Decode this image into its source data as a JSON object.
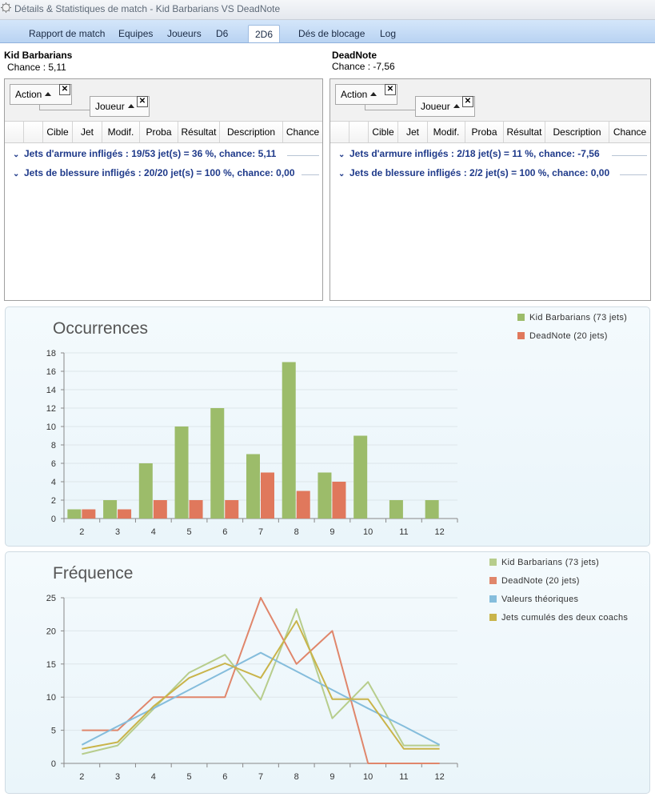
{
  "window": {
    "title": "Détails & Statistiques de match - Kid Barbarians VS DeadNote",
    "icon": "app-icon"
  },
  "tabs": [
    {
      "label": "Rapport de match",
      "active": false
    },
    {
      "label": "Equipes",
      "active": false
    },
    {
      "label": "Joueurs",
      "active": false
    },
    {
      "label": "D6",
      "active": false
    },
    {
      "label": "2D6",
      "active": true
    },
    {
      "label": "Dés de blocage",
      "active": false
    },
    {
      "label": "Log",
      "active": false
    }
  ],
  "teams": [
    {
      "name": "Kid Barbarians",
      "chance_label": "Chance : 5,11",
      "group_chips": {
        "action": "Action",
        "joueur": "Joueur",
        "close_icon": "close-icon"
      },
      "columns": [
        "Cible",
        "Jet",
        "Modif.",
        "Proba",
        "Résultat",
        "Description",
        "Chance"
      ],
      "groups": [
        {
          "label": "Jets d'armure infligés :  19/53 jet(s) = 36 %, chance: 5,11"
        },
        {
          "label": "Jets de blessure infligés :  20/20 jet(s) = 100 %, chance: 0,00"
        }
      ]
    },
    {
      "name": "DeadNote",
      "chance_label": "Chance : -7,56",
      "group_chips": {
        "action": "Action",
        "joueur": "Joueur",
        "close_icon": "close-icon"
      },
      "columns": [
        "Cible",
        "Jet",
        "Modif.",
        "Proba",
        "Résultat",
        "Description",
        "Chance"
      ],
      "groups": [
        {
          "label": "Jets d'armure infligés :  2/18 jet(s) = 11 %, chance: -7,56"
        },
        {
          "label": "Jets de blessure infligés :  2/2 jet(s) = 100 %, chance: 0,00"
        }
      ]
    }
  ],
  "chart_data": [
    {
      "type": "bar",
      "title": "Occurrences",
      "categories": [
        "2",
        "3",
        "4",
        "5",
        "6",
        "7",
        "8",
        "9",
        "10",
        "11",
        "12"
      ],
      "ylim": [
        0,
        18
      ],
      "yticks": [
        0,
        2,
        4,
        6,
        8,
        10,
        12,
        14,
        16,
        18
      ],
      "grid": true,
      "legend": "top-right",
      "series": [
        {
          "name": "Kid Barbarians (73 jets)",
          "color": "#9cbc6a",
          "values": [
            1,
            2,
            6,
            10,
            12,
            7,
            17,
            5,
            9,
            2,
            2
          ]
        },
        {
          "name": "DeadNote (20 jets)",
          "color": "#e0785c",
          "values": [
            1,
            1,
            2,
            2,
            2,
            5,
            3,
            4,
            0,
            0,
            0
          ]
        }
      ]
    },
    {
      "type": "line",
      "title": "Fréquence",
      "x": [
        2,
        3,
        4,
        5,
        6,
        7,
        8,
        9,
        10,
        11,
        12
      ],
      "ylim": [
        0,
        25
      ],
      "yticks": [
        0,
        5,
        10,
        15,
        20,
        25
      ],
      "grid": true,
      "legend": "top-right",
      "series": [
        {
          "name": "Kid Barbarians (73 jets)",
          "color": "#b7cd8c",
          "values": [
            1.4,
            2.7,
            8.2,
            13.7,
            16.4,
            9.6,
            23.3,
            6.8,
            12.3,
            2.7,
            2.7
          ]
        },
        {
          "name": "DeadNote (20 jets)",
          "color": "#e0866b",
          "values": [
            5,
            5,
            10,
            10,
            10,
            25,
            15,
            20,
            0,
            0,
            0
          ]
        },
        {
          "name": "Valeurs théoriques",
          "color": "#85bddc",
          "values": [
            2.8,
            5.6,
            8.3,
            11.1,
            13.9,
            16.7,
            13.9,
            11.1,
            8.3,
            5.6,
            2.8
          ]
        },
        {
          "name": "Jets cumulés des deux coachs",
          "color": "#c9b44a",
          "values": [
            2.2,
            3.2,
            8.6,
            12.9,
            15.1,
            12.9,
            21.5,
            9.7,
            9.7,
            2.2,
            2.2
          ]
        }
      ]
    }
  ]
}
